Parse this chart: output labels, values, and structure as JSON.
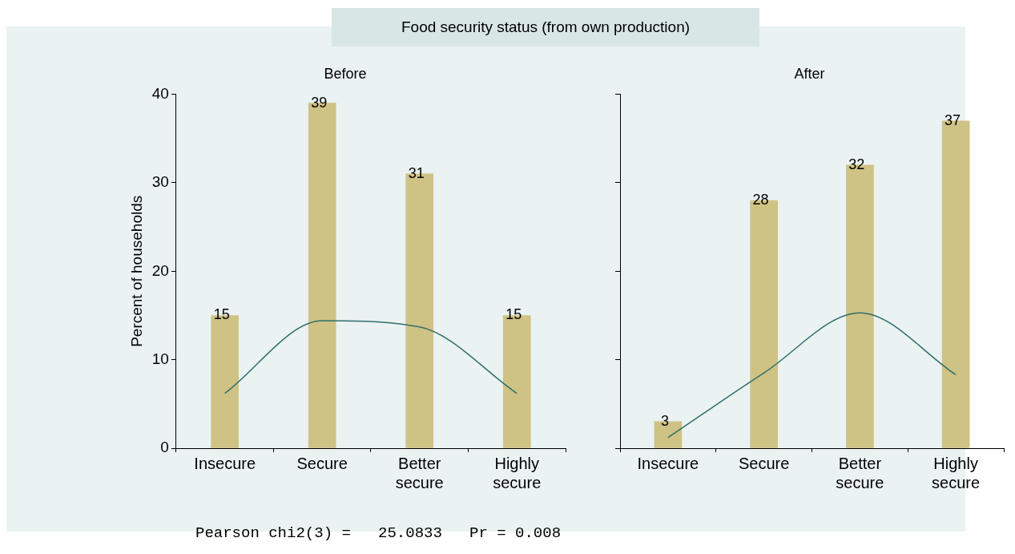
{
  "chart_data": [
    {
      "type": "bar",
      "title": "Before",
      "ylabel": "Percent of households",
      "annotations": [
        "Food security status (from own production)"
      ],
      "categories": [
        "Insecure",
        "Secure",
        "Better secure",
        "Highly secure"
      ],
      "ylim": [
        0,
        40
      ],
      "yticks": [
        0,
        10,
        20,
        30,
        40
      ],
      "series": [
        {
          "color": "#cfc285",
          "values": [
            15,
            39,
            31,
            15
          ],
          "value_labels": [
            "15",
            "39",
            "31",
            "15"
          ]
        },
        {
          "type": "line",
          "color": "#2f6f6a",
          "values": [
            6.2,
            14.4,
            13.7,
            6.2
          ]
        }
      ]
    },
    {
      "type": "bar",
      "title": "After",
      "annotations": [
        "Pearson chi2(3) =   25.0833   Pr = 0.008"
      ],
      "categories": [
        "Insecure",
        "Secure",
        "Better secure",
        "Highly secure"
      ],
      "ylim": [
        0,
        40
      ],
      "yticks": [
        0,
        10,
        20,
        30,
        40
      ],
      "tick_labels": "x",
      "series": [
        {
          "color": "#cfc285",
          "values": [
            3,
            28,
            32,
            37
          ],
          "value_labels": [
            "3",
            "28",
            "32",
            "37"
          ]
        },
        {
          "type": "line",
          "color": "#2f6f6a",
          "values": [
            1.2,
            8.5,
            15.3,
            8.3
          ]
        }
      ]
    }
  ]
}
